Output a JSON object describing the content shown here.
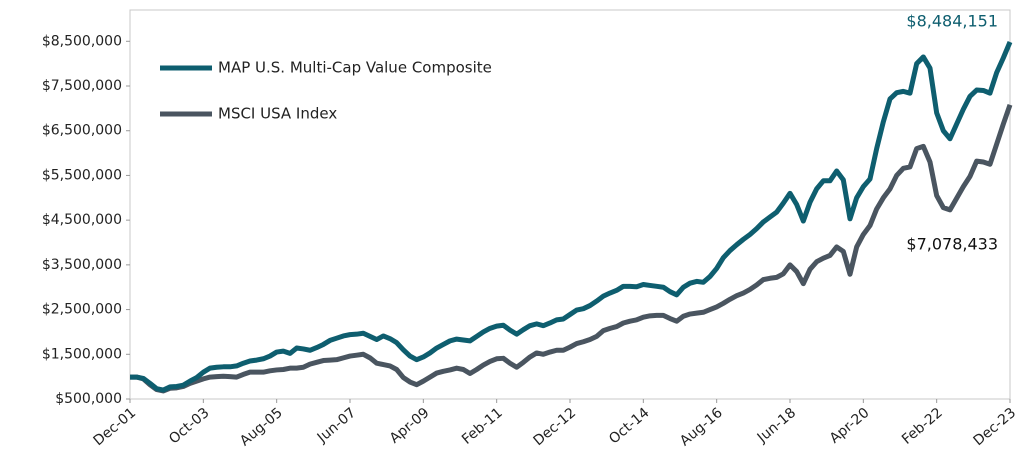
{
  "chart_data": {
    "type": "line",
    "categories": [
      "Dec-01",
      null,
      null,
      null,
      null,
      null,
      null,
      null,
      null,
      null,
      null,
      "Oct-03",
      null,
      null,
      null,
      null,
      null,
      null,
      null,
      null,
      null,
      null,
      "Aug-05",
      null,
      null,
      null,
      null,
      null,
      null,
      null,
      null,
      null,
      null,
      "Jun-07",
      null,
      null,
      null,
      null,
      null,
      null,
      null,
      null,
      null,
      null,
      "Apr-09",
      null,
      null,
      null,
      null,
      null,
      null,
      null,
      null,
      null,
      null,
      "Feb-11",
      null,
      null,
      null,
      null,
      null,
      null,
      null,
      null,
      null,
      null,
      "Dec-12",
      null,
      null,
      null,
      null,
      null,
      null,
      null,
      null,
      null,
      null,
      "Oct-14",
      null,
      null,
      null,
      null,
      null,
      null,
      null,
      null,
      null,
      null,
      "Aug-16",
      null,
      null,
      null,
      null,
      null,
      null,
      null,
      null,
      null,
      null,
      "Jun-18",
      null,
      null,
      null,
      null,
      null,
      null,
      null,
      null,
      null,
      null,
      "Apr-20",
      null,
      null,
      null,
      null,
      null,
      null,
      null,
      null,
      null,
      null,
      "Feb-22",
      null,
      null,
      null,
      null,
      null,
      null,
      null,
      null,
      null,
      null,
      "Dec-23"
    ],
    "series": [
      {
        "name": "MAP U.S. Multi-Cap Value Composite",
        "color": "#0e5e6f",
        "values": [
          990000,
          990000,
          960000,
          850000,
          730000,
          700000,
          770000,
          780000,
          810000,
          900000,
          980000,
          1100000,
          1190000,
          1210000,
          1220000,
          1220000,
          1240000,
          1300000,
          1350000,
          1370000,
          1400000,
          1460000,
          1550000,
          1570000,
          1520000,
          1640000,
          1620000,
          1590000,
          1650000,
          1720000,
          1810000,
          1860000,
          1910000,
          1940000,
          1950000,
          1970000,
          1900000,
          1830000,
          1910000,
          1850000,
          1760000,
          1600000,
          1460000,
          1380000,
          1440000,
          1530000,
          1640000,
          1720000,
          1800000,
          1840000,
          1820000,
          1800000,
          1900000,
          2000000,
          2080000,
          2130000,
          2150000,
          2040000,
          1950000,
          2050000,
          2140000,
          2180000,
          2140000,
          2200000,
          2270000,
          2290000,
          2390000,
          2490000,
          2520000,
          2590000,
          2690000,
          2800000,
          2870000,
          2930000,
          3020000,
          3020000,
          3010000,
          3060000,
          3040000,
          3020000,
          3000000,
          2900000,
          2830000,
          3000000,
          3090000,
          3130000,
          3110000,
          3240000,
          3420000,
          3660000,
          3820000,
          3950000,
          4070000,
          4180000,
          4310000,
          4460000,
          4570000,
          4680000,
          4880000,
          5100000,
          4850000,
          4480000,
          4900000,
          5200000,
          5380000,
          5380000,
          5600000,
          5400000,
          4530000,
          5000000,
          5250000,
          5420000,
          6100000,
          6700000,
          7210000,
          7350000,
          7380000,
          7340000,
          8000000,
          8150000,
          7900000,
          6900000,
          6500000,
          6320000,
          6650000,
          6980000,
          7270000,
          7410000,
          7400000,
          7340000,
          7800000,
          8130000,
          8484151
        ]
      },
      {
        "name": "MSCI USA Index",
        "color": "#4a5560",
        "values": [
          990000,
          990000,
          950000,
          820000,
          710000,
          680000,
          740000,
          750000,
          780000,
          850000,
          900000,
          950000,
          990000,
          1000000,
          1010000,
          1000000,
          990000,
          1050000,
          1100000,
          1100000,
          1100000,
          1130000,
          1150000,
          1160000,
          1190000,
          1190000,
          1210000,
          1280000,
          1320000,
          1360000,
          1370000,
          1380000,
          1420000,
          1460000,
          1480000,
          1500000,
          1420000,
          1300000,
          1270000,
          1240000,
          1160000,
          980000,
          880000,
          820000,
          900000,
          990000,
          1080000,
          1120000,
          1150000,
          1190000,
          1160000,
          1070000,
          1160000,
          1260000,
          1340000,
          1400000,
          1410000,
          1300000,
          1210000,
          1320000,
          1440000,
          1530000,
          1500000,
          1550000,
          1590000,
          1590000,
          1660000,
          1740000,
          1780000,
          1830000,
          1900000,
          2030000,
          2080000,
          2120000,
          2200000,
          2240000,
          2270000,
          2330000,
          2360000,
          2370000,
          2370000,
          2300000,
          2240000,
          2350000,
          2400000,
          2420000,
          2440000,
          2500000,
          2560000,
          2640000,
          2730000,
          2810000,
          2870000,
          2950000,
          3050000,
          3170000,
          3200000,
          3220000,
          3300000,
          3500000,
          3350000,
          3080000,
          3400000,
          3570000,
          3650000,
          3710000,
          3900000,
          3800000,
          3290000,
          3900000,
          4180000,
          4380000,
          4750000,
          5000000,
          5200000,
          5500000,
          5660000,
          5690000,
          6100000,
          6150000,
          5800000,
          5050000,
          4780000,
          4730000,
          4990000,
          5250000,
          5480000,
          5820000,
          5800000,
          5750000,
          6200000,
          6650000,
          7078433
        ]
      }
    ],
    "annotations": [
      "$8,484,151",
      "$7,078,433"
    ],
    "ylim": [
      500000,
      9200000
    ],
    "yticks": [
      {
        "value": 500000,
        "label": "$500,000"
      },
      {
        "value": 1500000,
        "label": "$1,500,000"
      },
      {
        "value": 2500000,
        "label": "$2,500,000"
      },
      {
        "value": 3500000,
        "label": "$3,500,000"
      },
      {
        "value": 4500000,
        "label": "$4,500,000"
      },
      {
        "value": 5500000,
        "label": "$5,500,000"
      },
      {
        "value": 6500000,
        "label": "$6,500,000"
      },
      {
        "value": 7500000,
        "label": "$7,500,000"
      },
      {
        "value": 8500000,
        "label": "$8,500,000"
      }
    ],
    "legend": "upper-left",
    "grid": false
  }
}
